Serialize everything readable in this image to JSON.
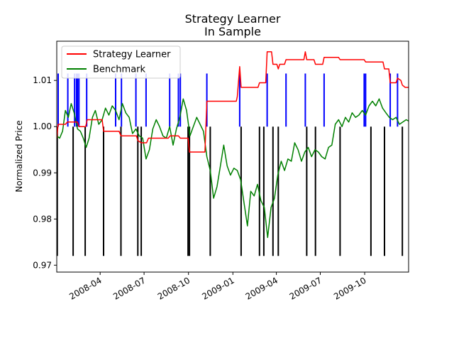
{
  "chart_data": {
    "type": "line",
    "title": "Strategy Learner",
    "subtitle": "In Sample",
    "xlabel": "",
    "ylabel": "Normalized Price",
    "xlim": [
      "2008-01-02",
      "2009-12-31"
    ],
    "ylim": [
      0.9685,
      1.0185
    ],
    "grid": false,
    "legend_position": "upper-left",
    "x_tick_labels": [
      "2008-04",
      "2008-07",
      "2008-10",
      "2009-01",
      "2009-04",
      "2009-07",
      "2009-10"
    ],
    "x_ticks": [
      "2008-04-01",
      "2008-07-01",
      "2008-10-01",
      "2009-01-01",
      "2009-04-01",
      "2009-07-01",
      "2009-10-01"
    ],
    "y_tick_labels": [
      "0.97",
      "0.98",
      "0.99",
      "1.00",
      "1.01"
    ],
    "y_ticks": [
      0.97,
      0.98,
      0.99,
      1.0,
      1.01
    ],
    "series": [
      {
        "name": "Strategy Learner",
        "color": "#ff0000",
        "points": [
          [
            "2008-01-02",
            0.9975
          ],
          [
            "2008-01-05",
            1.0005
          ],
          [
            "2008-01-20",
            1.0005
          ],
          [
            "2008-01-24",
            1.001
          ],
          [
            "2008-02-14",
            1.001
          ],
          [
            "2008-02-17",
            1.0
          ],
          [
            "2008-03-02",
            1.0
          ],
          [
            "2008-03-05",
            1.0015
          ],
          [
            "2008-04-01",
            1.0015
          ],
          [
            "2008-04-05",
            1.0015
          ],
          [
            "2008-04-08",
            0.999
          ],
          [
            "2008-05-10",
            0.999
          ],
          [
            "2008-05-14",
            0.998
          ],
          [
            "2008-06-15",
            0.998
          ],
          [
            "2008-06-18",
            0.997
          ],
          [
            "2008-06-25",
            0.9965
          ],
          [
            "2008-07-06",
            0.9965
          ],
          [
            "2008-07-10",
            0.9975
          ],
          [
            "2008-08-20",
            0.9975
          ],
          [
            "2008-08-24",
            0.998
          ],
          [
            "2008-09-10",
            0.998
          ],
          [
            "2008-09-14",
            0.9975
          ],
          [
            "2008-09-30",
            0.9975
          ],
          [
            "2008-10-03",
            0.9945
          ],
          [
            "2008-11-04",
            0.9945
          ],
          [
            "2008-11-08",
            1.0055
          ],
          [
            "2009-01-08",
            1.0055
          ],
          [
            "2009-01-10",
            1.0065
          ],
          [
            "2009-01-15",
            1.013
          ],
          [
            "2009-01-18",
            1.0085
          ],
          [
            "2009-02-22",
            1.0085
          ],
          [
            "2009-02-25",
            1.0095
          ],
          [
            "2009-03-10",
            1.0095
          ],
          [
            "2009-03-13",
            1.0162
          ],
          [
            "2009-03-22",
            1.0162
          ],
          [
            "2009-03-25",
            1.0135
          ],
          [
            "2009-04-02",
            1.0135
          ],
          [
            "2009-04-05",
            1.0125
          ],
          [
            "2009-04-08",
            1.0135
          ],
          [
            "2009-04-18",
            1.0135
          ],
          [
            "2009-04-21",
            1.0145
          ],
          [
            "2009-05-28",
            1.0145
          ],
          [
            "2009-05-31",
            1.0162
          ],
          [
            "2009-06-03",
            1.0145
          ],
          [
            "2009-06-18",
            1.0145
          ],
          [
            "2009-06-21",
            1.0135
          ],
          [
            "2009-07-06",
            1.0135
          ],
          [
            "2009-07-09",
            1.015
          ],
          [
            "2009-08-08",
            1.015
          ],
          [
            "2009-08-11",
            1.0145
          ],
          [
            "2009-09-30",
            1.0145
          ],
          [
            "2009-10-03",
            1.014
          ],
          [
            "2009-11-08",
            1.014
          ],
          [
            "2009-11-11",
            1.0125
          ],
          [
            "2009-11-20",
            1.0125
          ],
          [
            "2009-11-23",
            1.0095
          ],
          [
            "2009-12-05",
            1.0095
          ],
          [
            "2009-12-08",
            1.0105
          ],
          [
            "2009-12-15",
            1.01
          ],
          [
            "2009-12-18",
            1.009
          ],
          [
            "2009-12-24",
            1.0085
          ],
          [
            "2009-12-31",
            1.0085
          ]
        ]
      },
      {
        "name": "Benchmark",
        "color": "#008000",
        "points": [
          [
            "2008-01-02",
            0.998
          ],
          [
            "2008-01-08",
            0.9975
          ],
          [
            "2008-01-14",
            0.999
          ],
          [
            "2008-01-20",
            1.0035
          ],
          [
            "2008-01-26",
            1.002
          ],
          [
            "2008-02-01",
            1.005
          ],
          [
            "2008-02-07",
            1.003
          ],
          [
            "2008-02-14",
            0.9995
          ],
          [
            "2008-02-20",
            0.999
          ],
          [
            "2008-02-26",
            0.9975
          ],
          [
            "2008-03-03",
            0.9955
          ],
          [
            "2008-03-09",
            0.9975
          ],
          [
            "2008-03-16",
            1.002
          ],
          [
            "2008-03-22",
            1.0035
          ],
          [
            "2008-03-29",
            1.0005
          ],
          [
            "2008-04-05",
            1.0015
          ],
          [
            "2008-04-12",
            1.004
          ],
          [
            "2008-04-19",
            1.0025
          ],
          [
            "2008-04-26",
            1.0045
          ],
          [
            "2008-05-03",
            1.0035
          ],
          [
            "2008-05-10",
            1.0015
          ],
          [
            "2008-05-17",
            1.005
          ],
          [
            "2008-05-24",
            1.003
          ],
          [
            "2008-05-31",
            1.002
          ],
          [
            "2008-06-07",
            0.9985
          ],
          [
            "2008-06-14",
            0.9995
          ],
          [
            "2008-06-21",
            0.998
          ],
          [
            "2008-06-28",
            0.9975
          ],
          [
            "2008-07-05",
            0.993
          ],
          [
            "2008-07-12",
            0.995
          ],
          [
            "2008-07-19",
            0.9995
          ],
          [
            "2008-07-26",
            1.0015
          ],
          [
            "2008-08-02",
            1.0
          ],
          [
            "2008-08-09",
            0.998
          ],
          [
            "2008-08-16",
            0.9975
          ],
          [
            "2008-08-23",
            1.0
          ],
          [
            "2008-08-30",
            0.996
          ],
          [
            "2008-09-06",
            0.9995
          ],
          [
            "2008-09-13",
            1.002
          ],
          [
            "2008-09-20",
            1.006
          ],
          [
            "2008-09-27",
            1.0035
          ],
          [
            "2008-10-04",
            0.998
          ],
          [
            "2008-10-11",
            1.0
          ],
          [
            "2008-10-18",
            1.002
          ],
          [
            "2008-10-25",
            1.0005
          ],
          [
            "2008-11-01",
            0.999
          ],
          [
            "2008-11-08",
            0.9935
          ],
          [
            "2008-11-15",
            0.9905
          ],
          [
            "2008-11-22",
            0.9845
          ],
          [
            "2008-11-29",
            0.987
          ],
          [
            "2008-12-06",
            0.9915
          ],
          [
            "2008-12-13",
            0.996
          ],
          [
            "2008-12-20",
            0.9915
          ],
          [
            "2008-12-27",
            0.9895
          ],
          [
            "2009-01-03",
            0.991
          ],
          [
            "2009-01-10",
            0.9905
          ],
          [
            "2009-01-17",
            0.9885
          ],
          [
            "2009-01-24",
            0.9835
          ],
          [
            "2009-01-31",
            0.9785
          ],
          [
            "2009-02-07",
            0.986
          ],
          [
            "2009-02-14",
            0.985
          ],
          [
            "2009-02-21",
            0.9875
          ],
          [
            "2009-02-28",
            0.984
          ],
          [
            "2009-03-07",
            0.9825
          ],
          [
            "2009-03-14",
            0.976
          ],
          [
            "2009-03-21",
            0.9825
          ],
          [
            "2009-03-28",
            0.9845
          ],
          [
            "2009-04-04",
            0.9895
          ],
          [
            "2009-04-11",
            0.9925
          ],
          [
            "2009-04-18",
            0.9905
          ],
          [
            "2009-04-25",
            0.993
          ],
          [
            "2009-05-02",
            0.9925
          ],
          [
            "2009-05-09",
            0.9965
          ],
          [
            "2009-05-16",
            0.995
          ],
          [
            "2009-05-23",
            0.9925
          ],
          [
            "2009-05-30",
            0.9945
          ],
          [
            "2009-06-06",
            0.9955
          ],
          [
            "2009-06-13",
            0.9935
          ],
          [
            "2009-06-20",
            0.995
          ],
          [
            "2009-06-27",
            0.9945
          ],
          [
            "2009-07-04",
            0.9935
          ],
          [
            "2009-07-11",
            0.993
          ],
          [
            "2009-07-18",
            0.9955
          ],
          [
            "2009-07-25",
            0.996
          ],
          [
            "2009-08-01",
            1.0005
          ],
          [
            "2009-08-08",
            1.0015
          ],
          [
            "2009-08-15",
            1.0
          ],
          [
            "2009-08-22",
            1.002
          ],
          [
            "2009-08-29",
            1.001
          ],
          [
            "2009-09-05",
            1.003
          ],
          [
            "2009-09-12",
            1.002
          ],
          [
            "2009-09-19",
            1.0025
          ],
          [
            "2009-09-26",
            1.0035
          ],
          [
            "2009-10-03",
            1.0025
          ],
          [
            "2009-10-10",
            1.0045
          ],
          [
            "2009-10-17",
            1.0055
          ],
          [
            "2009-10-24",
            1.0045
          ],
          [
            "2009-10-31",
            1.006
          ],
          [
            "2009-11-07",
            1.004
          ],
          [
            "2009-11-14",
            1.003
          ],
          [
            "2009-11-21",
            1.002
          ],
          [
            "2009-11-28",
            1.0015
          ],
          [
            "2009-12-05",
            1.002
          ],
          [
            "2009-12-12",
            1.0005
          ],
          [
            "2009-12-19",
            1.001
          ],
          [
            "2009-12-26",
            1.0015
          ],
          [
            "2009-12-31",
            1.0012
          ]
        ]
      }
    ],
    "long_entries": {
      "color": "#0000ff",
      "y_range": [
        1.0,
        1.0115
      ],
      "dates": [
        "2008-01-05",
        "2008-01-25",
        "2008-02-08",
        "2008-02-12",
        "2008-02-14",
        "2008-02-17",
        "2008-03-04",
        "2008-05-03",
        "2008-05-15",
        "2008-06-14",
        "2008-07-05",
        "2008-08-23",
        "2008-09-10",
        "2008-09-14",
        "2008-11-08",
        "2009-01-15",
        "2009-03-13",
        "2009-04-21",
        "2009-05-31",
        "2009-07-09",
        "2009-09-30",
        "2009-10-03",
        "2009-11-23",
        "2009-12-08"
      ]
    },
    "short_entries": {
      "color": "#000000",
      "y_range": [
        0.972,
        1.0
      ],
      "dates": [
        "2008-01-03",
        "2008-02-05",
        "2008-03-01",
        "2008-04-08",
        "2008-05-14",
        "2008-06-18",
        "2008-06-25",
        "2008-09-30",
        "2008-10-03",
        "2008-11-15",
        "2009-01-18",
        "2009-02-25",
        "2009-03-06",
        "2009-03-25",
        "2009-04-05",
        "2009-06-03",
        "2009-06-21",
        "2009-08-11",
        "2009-10-14",
        "2009-11-11",
        "2009-12-18"
      ]
    }
  }
}
